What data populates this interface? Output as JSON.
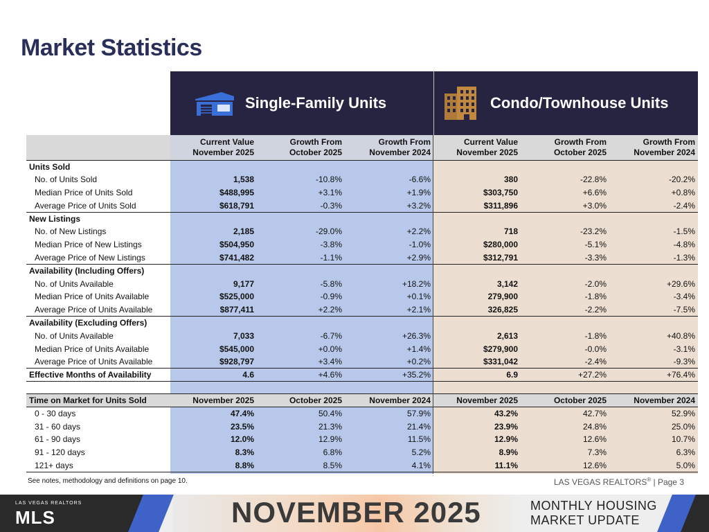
{
  "page_title": "Market Statistics",
  "header": {
    "single_family": "Single-Family Units",
    "condo": "Condo/Townhouse Units"
  },
  "columns": [
    [
      "Current Value",
      "November 2025"
    ],
    [
      "Growth From",
      "October 2025"
    ],
    [
      "Growth From",
      "November 2024"
    ],
    [
      "Current Value",
      "November 2025"
    ],
    [
      "Growth From",
      "October 2025"
    ],
    [
      "Growth From",
      "November 2024"
    ]
  ],
  "sections": [
    {
      "title": "Units Sold",
      "rows": [
        {
          "label": "No. of Units Sold",
          "values": [
            "1,538",
            "-10.8%",
            "-6.6%",
            "380",
            "-22.8%",
            "-20.2%"
          ]
        },
        {
          "label": "Median Price of Units Sold",
          "values": [
            "$488,995",
            "+3.1%",
            "+1.9%",
            "$303,750",
            "+6.6%",
            "+0.8%"
          ]
        },
        {
          "label": "Average Price of Units Sold",
          "values": [
            "$618,791",
            "-0.3%",
            "+3.2%",
            "$311,896",
            "+3.0%",
            "-2.4%"
          ]
        }
      ]
    },
    {
      "title": "New Listings",
      "rows": [
        {
          "label": "No. of New Listings",
          "values": [
            "2,185",
            "-29.0%",
            "+2.2%",
            "718",
            "-23.2%",
            "-1.5%"
          ]
        },
        {
          "label": "Median Price of New Listings",
          "values": [
            "$504,950",
            "-3.8%",
            "-1.0%",
            "$280,000",
            "-5.1%",
            "-4.8%"
          ]
        },
        {
          "label": "Average Price of New Listings",
          "values": [
            "$741,482",
            "-1.1%",
            "+2.9%",
            "$312,791",
            "-3.3%",
            "-1.3%"
          ]
        }
      ]
    },
    {
      "title": "Availability (Including Offers)",
      "rows": [
        {
          "label": "No. of Units Available",
          "values": [
            "9,177",
            "-5.8%",
            "+18.2%",
            "3,142",
            "-2.0%",
            "+29.6%"
          ]
        },
        {
          "label": "Median Price of Units Available",
          "values": [
            "$525,000",
            "-0.9%",
            "+0.1%",
            "279,900",
            "-1.8%",
            "-3.4%"
          ]
        },
        {
          "label": "Average Price of Units Available",
          "values": [
            "$877,411",
            "+2.2%",
            "+2.1%",
            "326,825",
            "-2.2%",
            "-7.5%"
          ]
        }
      ]
    },
    {
      "title": "Availability (Excluding Offers)",
      "rows": [
        {
          "label": "No. of Units Available",
          "values": [
            "7,033",
            "-6.7%",
            "+26.3%",
            "2,613",
            "-1.8%",
            "+40.8%"
          ]
        },
        {
          "label": "Median Price of Units Available",
          "values": [
            "$545,000",
            "+0.0%",
            "+1.4%",
            "$279,900",
            "-0.0%",
            "-3.1%"
          ]
        },
        {
          "label": "Average Price of Units Available",
          "values": [
            "$928,797",
            "+3.4%",
            "+0.2%",
            "$331,042",
            "-2.4%",
            "-9.3%"
          ]
        }
      ]
    }
  ],
  "effective": {
    "label": "Effective Months of Availability",
    "values": [
      "4.6",
      "+4.6%",
      "+35.2%",
      "6.9",
      "+27.2%",
      "+76.4%"
    ]
  },
  "time_on_market": {
    "title": "Time on Market for Units Sold",
    "headers": [
      "November 2025",
      "October 2025",
      "November 2024",
      "November 2025",
      "October 2025",
      "November 2024"
    ],
    "rows": [
      {
        "label": "0 - 30 days",
        "values": [
          "47.4%",
          "50.4%",
          "57.9%",
          "43.2%",
          "42.7%",
          "52.9%"
        ]
      },
      {
        "label": "31 - 60 days",
        "values": [
          "23.5%",
          "21.3%",
          "21.4%",
          "23.9%",
          "24.8%",
          "25.0%"
        ]
      },
      {
        "label": "61 - 90 days",
        "values": [
          "12.0%",
          "12.9%",
          "11.5%",
          "12.9%",
          "12.6%",
          "10.7%"
        ]
      },
      {
        "label": "91 - 120 days",
        "values": [
          "8.3%",
          "6.8%",
          "5.2%",
          "8.9%",
          "7.3%",
          "6.3%"
        ]
      },
      {
        "label": "121+ days",
        "values": [
          "8.8%",
          "8.5%",
          "4.1%",
          "11.1%",
          "12.6%",
          "5.0%"
        ]
      }
    ]
  },
  "footnote": "See notes, methodology and definitions on page 10.",
  "page_ref": {
    "brand": "LAS VEGAS REALTORS",
    "reg": "®",
    "page": " | Page 3"
  },
  "footer": {
    "logo_small": "LAS VEGAS REALTORS",
    "logo_main": "MLS",
    "month": "NOVEMBER 2025",
    "line1": "MONTHLY HOUSING",
    "line2": "MARKET UPDATE"
  },
  "icons": {
    "single_family": "house-icon",
    "condo": "building-icon"
  },
  "colors": {
    "title": "#2a2f5a",
    "band": "#262440",
    "single_family_bg": "#b8c8ea",
    "condo_bg": "#ecded0",
    "house_icon": "#3a6fd8",
    "building_icon": "#b07a3a"
  }
}
